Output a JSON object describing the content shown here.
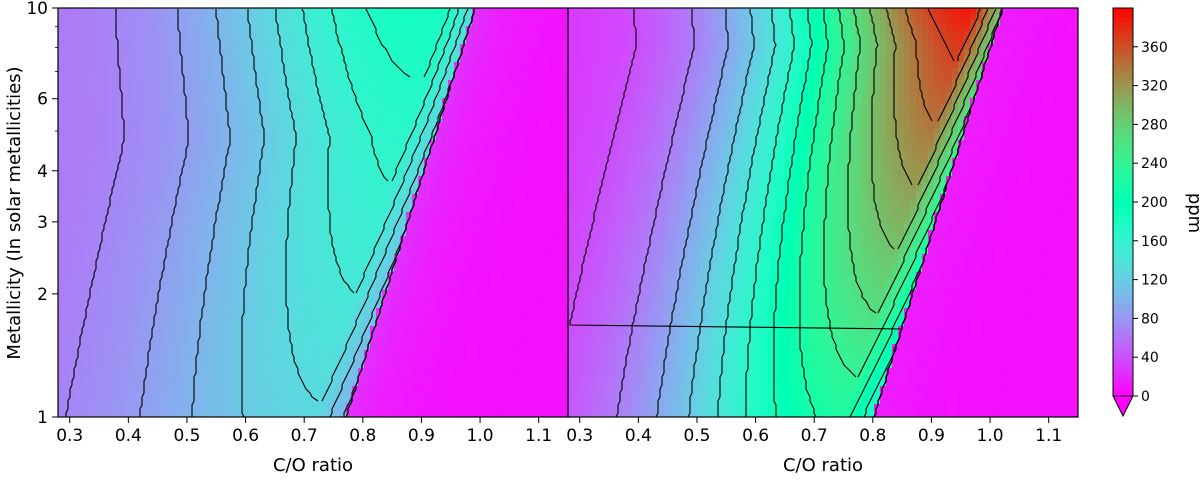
{
  "chart_data": {
    "type": "heatmap",
    "colormap": "rainbow",
    "shared_y_axis": {
      "label": "Metallicity (In solar metallicities)",
      "scale": "log",
      "range": [
        1,
        10
      ],
      "ticks": [
        1,
        2,
        3,
        4,
        6,
        10
      ],
      "tick_labels": [
        "1",
        "2",
        "3",
        "4",
        "6",
        "10"
      ]
    },
    "panels": [
      {
        "xlabel": "C/O ratio",
        "xlim": [
          0.28,
          1.15
        ],
        "x_ticks": [
          0.3,
          0.4,
          0.5,
          0.6,
          0.7,
          0.8,
          0.9,
          1.0,
          1.1
        ],
        "x_tick_labels": [
          "0.3",
          "0.4",
          "0.5",
          "0.6",
          "0.7",
          "0.8",
          "0.9",
          "1.0",
          "1.1"
        ],
        "peak_ppm": 185,
        "peak_co": 0.9,
        "cliff_co_at_1": 0.77,
        "cliff_co_at_10": 0.99,
        "min_ppm": 60
      },
      {
        "xlabel": "C/O ratio",
        "xlim": [
          0.28,
          1.15
        ],
        "x_ticks": [
          0.3,
          0.4,
          0.5,
          0.6,
          0.7,
          0.8,
          0.9,
          1.0,
          1.1
        ],
        "x_tick_labels": [
          "0.3",
          "0.4",
          "0.5",
          "0.6",
          "0.7",
          "0.8",
          "0.9",
          "1.0",
          "1.1"
        ],
        "peak_ppm": 390,
        "peak_co": 0.98,
        "cliff_co_at_1": 0.8,
        "cliff_co_at_10": 1.02,
        "min_ppm": 25
      }
    ],
    "colorbar": {
      "label": "ppm",
      "range": [
        0,
        400
      ],
      "ticks": [
        0,
        40,
        80,
        120,
        160,
        200,
        240,
        280,
        320,
        360
      ],
      "tick_labels": [
        "0",
        "40",
        "80",
        "120",
        "160",
        "200",
        "240",
        "280",
        "320",
        "360"
      ],
      "extend": "min"
    }
  }
}
